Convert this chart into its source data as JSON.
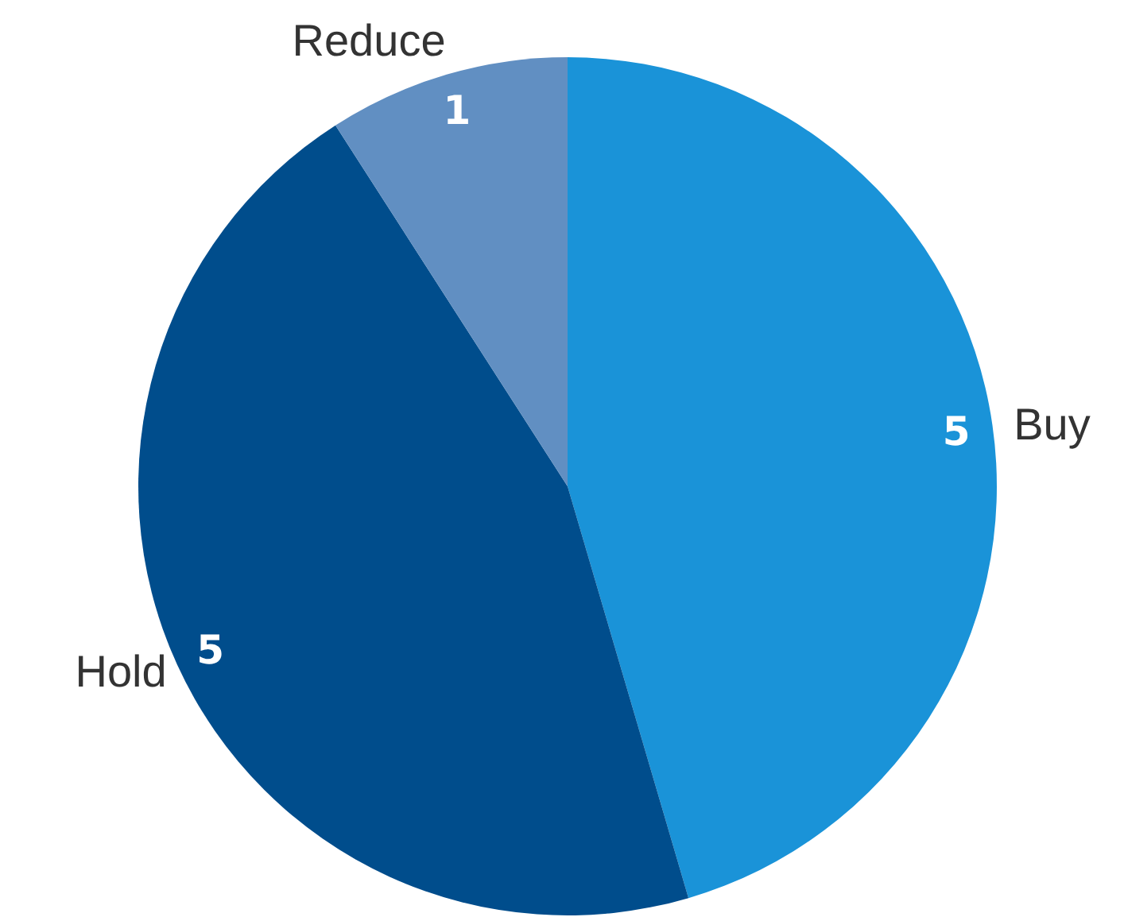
{
  "chart_data": {
    "type": "pie",
    "categories": [
      "Buy",
      "Hold",
      "Reduce"
    ],
    "values": [
      5,
      5,
      1
    ],
    "colors": [
      "#1a93d8",
      "#004d8c",
      "#618fc2"
    ],
    "data_labels": true
  }
}
